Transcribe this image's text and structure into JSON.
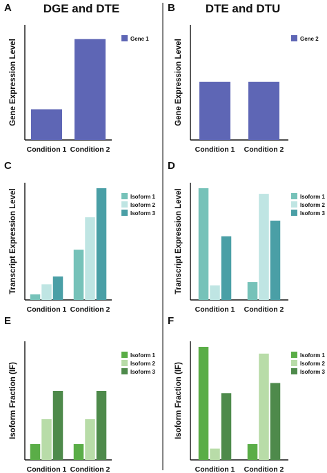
{
  "column_titles": [
    "DGE and DTE",
    "DTE and DTU"
  ],
  "chart_data": [
    {
      "panel": "A",
      "type": "bar",
      "ylabel": "Gene Expression Level",
      "categories": [
        "Condition 1",
        "Condition 2"
      ],
      "ylim": [
        0,
        100
      ],
      "series": [
        {
          "name": "Gene 1",
          "color": "#5e66b5",
          "values": [
            28,
            92
          ]
        }
      ]
    },
    {
      "panel": "B",
      "type": "bar",
      "ylabel": "Gene Expression Level",
      "categories": [
        "Condition 1",
        "Condition 2"
      ],
      "ylim": [
        0,
        100
      ],
      "series": [
        {
          "name": "Gene 2",
          "color": "#5e66b5",
          "values": [
            53,
            53
          ]
        }
      ]
    },
    {
      "panel": "C",
      "type": "bar",
      "ylabel": "Transcript Expression Level",
      "categories": [
        "Condition 1",
        "Condition 2"
      ],
      "ylim": [
        0,
        100
      ],
      "series": [
        {
          "name": "Isoform 1",
          "color": "#76c2b9",
          "values": [
            5,
            45
          ]
        },
        {
          "name": "Isoform 2",
          "color": "#bfe5e3",
          "values": [
            14,
            74
          ]
        },
        {
          "name": "Isoform 3",
          "color": "#4a9fa6",
          "values": [
            21,
            100
          ]
        }
      ]
    },
    {
      "panel": "D",
      "type": "bar",
      "ylabel": "Transcript Expression Level",
      "categories": [
        "Condition 1",
        "Condition 2"
      ],
      "ylim": [
        0,
        100
      ],
      "series": [
        {
          "name": "Isoform 1",
          "color": "#76c2b9",
          "values": [
            100,
            16
          ]
        },
        {
          "name": "Isoform 2",
          "color": "#bfe5e3",
          "values": [
            13,
            95
          ]
        },
        {
          "name": "Isoform 3",
          "color": "#4a9fa6",
          "values": [
            57,
            71
          ]
        }
      ]
    },
    {
      "panel": "E",
      "type": "bar",
      "ylabel": "Isoform Fraction (IF)",
      "categories": [
        "Condition 1",
        "Condition 2"
      ],
      "ylim": [
        0,
        100
      ],
      "series": [
        {
          "name": "Isoform 1",
          "color": "#5aad47",
          "values": [
            14,
            14
          ]
        },
        {
          "name": "Isoform 2",
          "color": "#b8dca8",
          "values": [
            36,
            36
          ]
        },
        {
          "name": "Isoform 3",
          "color": "#4e8a4b",
          "values": [
            61,
            61
          ]
        }
      ]
    },
    {
      "panel": "F",
      "type": "bar",
      "ylabel": "Isoform Fraction (IF)",
      "categories": [
        "Condition 1",
        "Condition 2"
      ],
      "ylim": [
        0,
        100
      ],
      "series": [
        {
          "name": "Isoform 1",
          "color": "#5aad47",
          "values": [
            100,
            14
          ]
        },
        {
          "name": "Isoform 2",
          "color": "#b8dca8",
          "values": [
            10,
            94
          ]
        },
        {
          "name": "Isoform 3",
          "color": "#4e8a4b",
          "values": [
            59,
            68
          ]
        }
      ]
    }
  ]
}
